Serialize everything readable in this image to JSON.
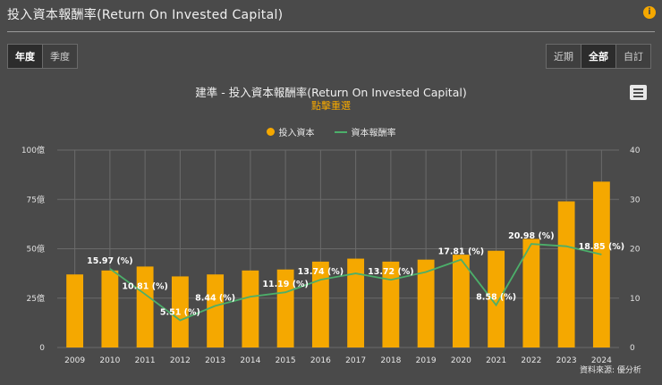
{
  "header": {
    "title": "投入資本報酬率(Return On Invested Capital)",
    "info_icon": "info-icon"
  },
  "period_tabs": [
    {
      "label": "年度",
      "active": true
    },
    {
      "label": "季度",
      "active": false
    }
  ],
  "range_tabs": [
    {
      "label": "近期",
      "active": false
    },
    {
      "label": "全部",
      "active": true
    },
    {
      "label": "自訂",
      "active": false
    }
  ],
  "chart_header": {
    "title": "建準 - 投入資本報酬率(Return On Invested Capital)",
    "subtitle": "點擊重選"
  },
  "legend": {
    "bar_label": "投入資本",
    "line_label": "資本報酬率"
  },
  "source": "資料來源: 優分析",
  "colors": {
    "bar": "#f5a800",
    "line": "#4caf6a",
    "grid": "#6a6a6a"
  },
  "chart_data": {
    "type": "bar+line",
    "categories": [
      "2009",
      "2010",
      "2011",
      "2012",
      "2013",
      "2014",
      "2015",
      "2016",
      "2017",
      "2018",
      "2019",
      "2020",
      "2021",
      "2022",
      "2023",
      "2024"
    ],
    "series": [
      {
        "name": "投入資本",
        "axis": "left",
        "type": "bar",
        "values": [
          37,
          39,
          41,
          36,
          37,
          39,
          39.5,
          43.5,
          45,
          43.5,
          44.5,
          47,
          49,
          55,
          74,
          84
        ]
      },
      {
        "name": "資本報酬率",
        "axis": "right",
        "type": "line",
        "values": [
          null,
          15.97,
          10.81,
          5.51,
          8.44,
          null,
          11.19,
          13.74,
          null,
          13.72,
          null,
          17.81,
          8.58,
          20.98,
          null,
          18.85
        ],
        "line_values": [
          null,
          15.97,
          10.81,
          5.51,
          8.44,
          10.3,
          11.19,
          13.74,
          15.0,
          13.72,
          15.3,
          17.81,
          8.58,
          20.98,
          20.5,
          18.85
        ],
        "labels": [
          "",
          "15.97 (%)",
          "10.81 (%)",
          "5.51 (%)",
          "8.44 (%)",
          "",
          "11.19 (%)",
          "13.74 (%)",
          "",
          "13.72 (%)",
          "",
          "17.81 (%)",
          "8.58 (%)",
          "20.98 (%)",
          "",
          "18.85 (%)"
        ]
      }
    ],
    "left_axis": {
      "ticks": [
        "0",
        "25億",
        "50億",
        "75億",
        "100億"
      ],
      "range": [
        0,
        100
      ]
    },
    "right_axis": {
      "ticks": [
        "0",
        "10",
        "20",
        "30",
        "40"
      ],
      "range": [
        0,
        40
      ]
    }
  }
}
